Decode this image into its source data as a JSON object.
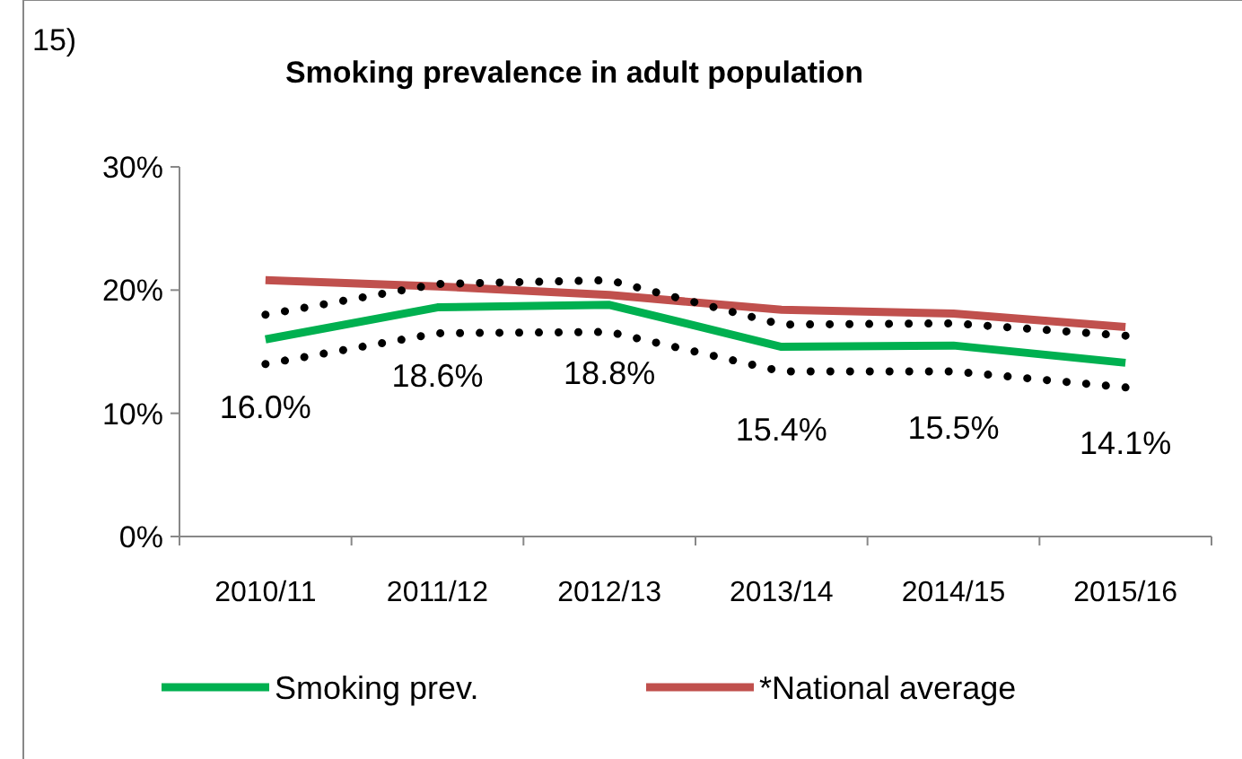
{
  "chart_data": {
    "type": "line",
    "title": "Smoking prevalence in adult population",
    "annotations": [
      "15)"
    ],
    "categories": [
      "2010/11",
      "2011/12",
      "2012/13",
      "2013/14",
      "2014/15",
      "2015/16"
    ],
    "series": [
      {
        "name": "Smoking prev.",
        "color": "#00b050",
        "values": [
          16.0,
          18.6,
          18.8,
          15.4,
          15.5,
          14.1
        ],
        "value_labels": [
          "16.0%",
          "18.6%",
          "18.8%",
          "15.4%",
          "15.5%",
          "14.1%"
        ]
      },
      {
        "name": "*National average",
        "color": "#c0504d",
        "values": [
          20.8,
          20.3,
          19.6,
          18.4,
          18.1,
          17.0
        ]
      },
      {
        "color": "#000000",
        "line_style": "dotted",
        "values": [
          18.0,
          20.5,
          20.8,
          17.2,
          17.3,
          16.3
        ]
      },
      {
        "color": "#000000",
        "line_style": "dotted",
        "values": [
          14.0,
          16.5,
          16.6,
          13.4,
          13.4,
          12.1
        ]
      }
    ],
    "ylim": [
      0,
      30
    ],
    "yticks": [
      {
        "value": 0,
        "label": "0%"
      },
      {
        "value": 10,
        "label": "10%"
      },
      {
        "value": 20,
        "label": "20%"
      },
      {
        "value": 30,
        "label": "30%"
      }
    ],
    "grid": false,
    "legend": "bottom",
    "marker": "none",
    "line_style": "solid"
  }
}
